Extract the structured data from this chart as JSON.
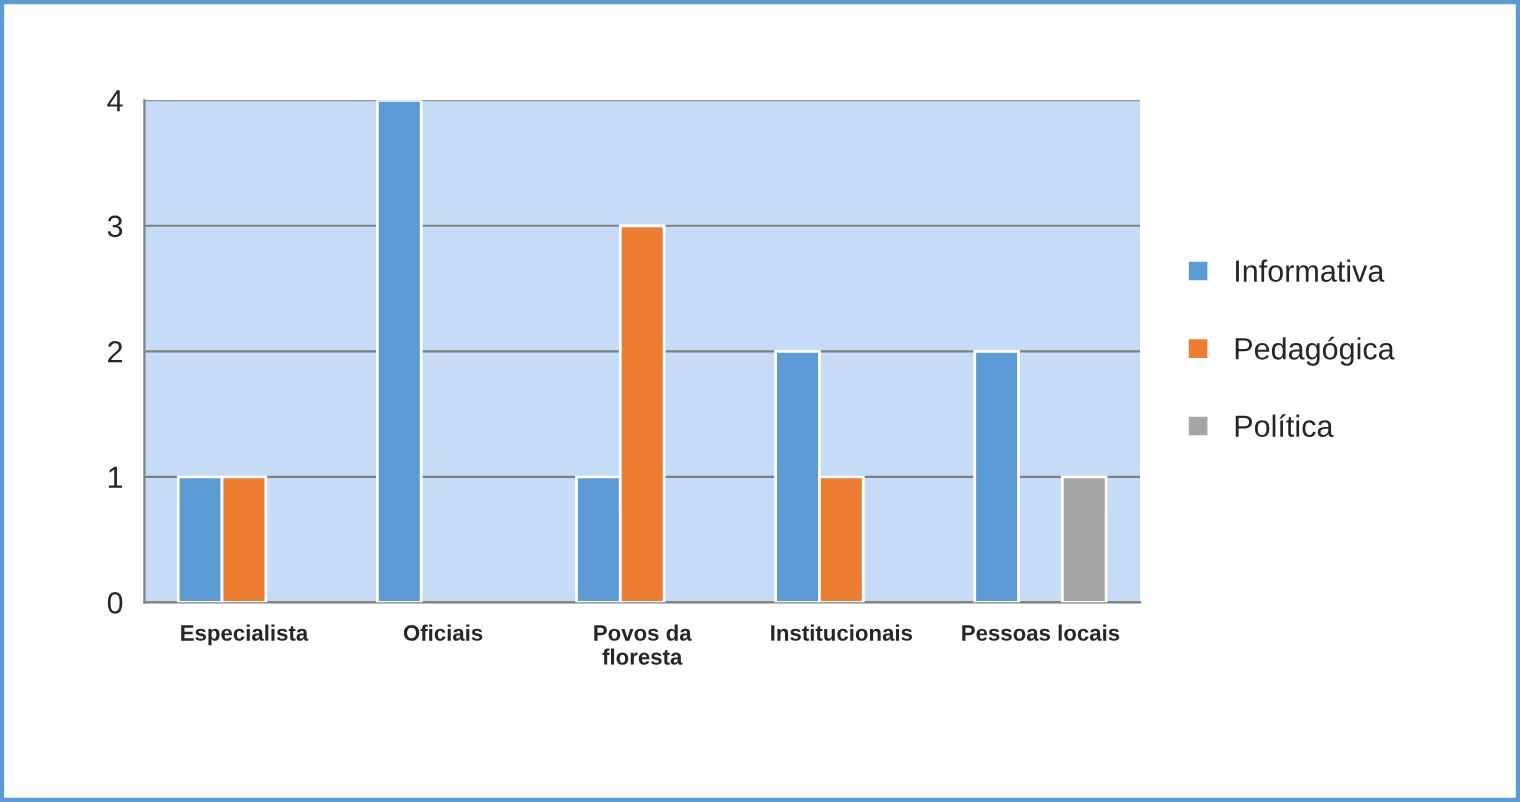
{
  "chart_data": {
    "type": "bar",
    "categories": [
      "Especialista",
      "Oficiais",
      "Povos da\nfloresta",
      "Institucionais",
      "Pessoas locais"
    ],
    "series": [
      {
        "name": "Informativa",
        "color": "#5b9bd5",
        "values": [
          1,
          4,
          1,
          2,
          2
        ]
      },
      {
        "name": "Pedagógica",
        "color": "#ed7d31",
        "values": [
          1,
          null,
          3,
          1,
          null
        ]
      },
      {
        "name": "Política",
        "color": "#a5a5a5",
        "values": [
          null,
          null,
          null,
          null,
          1
        ]
      }
    ],
    "ylim": [
      0,
      4
    ],
    "yticks": [
      0,
      1,
      2,
      3,
      4
    ],
    "grid": "y",
    "legend": "right"
  }
}
